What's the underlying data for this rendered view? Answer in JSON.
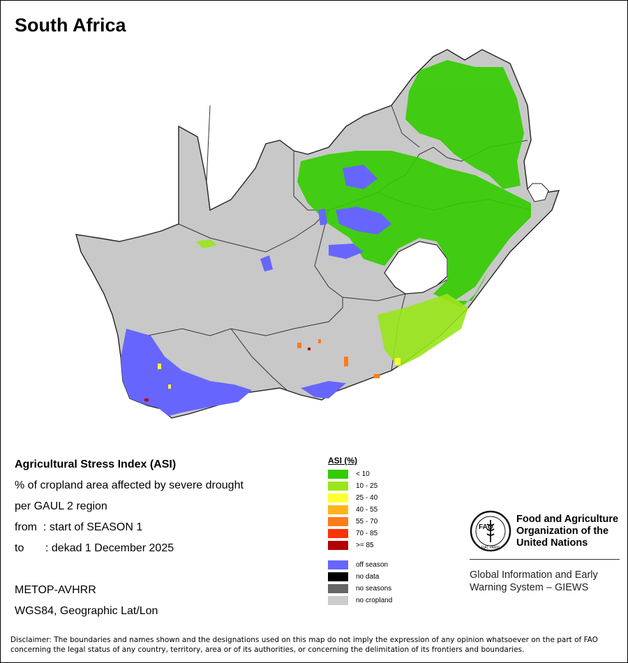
{
  "title": "South Africa",
  "info": {
    "index_name": "Agricultural Stress Index (ASI)",
    "description_line1": "% of cropland area affected by severe drought",
    "description_line2": "per GAUL 2 region",
    "from_label": "from",
    "from_value": ": start of SEASON 1",
    "to_label": "to",
    "to_value": ": dekad 1 December 2025",
    "sensor": "METOP-AVHRR",
    "projection": "WGS84, Geographic Lat/Lon"
  },
  "legend": {
    "title": "ASI (%)",
    "classes": [
      {
        "label": "< 10",
        "color": "#33cc00"
      },
      {
        "label": "10 - 25",
        "color": "#99e619"
      },
      {
        "label": "25 - 40",
        "color": "#ffff33"
      },
      {
        "label": "40 - 55",
        "color": "#ffb31a"
      },
      {
        "label": "55 - 70",
        "color": "#ff7a1a"
      },
      {
        "label": "70 - 85",
        "color": "#ff3300"
      },
      {
        "label": ">= 85",
        "color": "#b30000"
      }
    ],
    "other": [
      {
        "label": "off season",
        "color": "#6666ff"
      },
      {
        "label": "no data",
        "color": "#000000"
      },
      {
        "label": "no seasons",
        "color": "#666666"
      },
      {
        "label": "no cropland",
        "color": "#cccccc"
      }
    ]
  },
  "map": {
    "land_color": "#c8c8c8",
    "lesotho_color": "#ffffff",
    "border_color": "#222222"
  },
  "branding": {
    "org_line1": "Food and Agriculture",
    "org_line2": "Organization of the",
    "org_line3": "United Nations",
    "logo_text": "FAO",
    "logo_motto": "FIAT PANIS",
    "system_line1": "Global Information and Early",
    "system_line2": "Warning System – GIEWS"
  },
  "disclaimer": "Disclaimer: The boundaries and names shown and the designations used on this map do not imply the expression of any opinion whatsoever on the part of FAO concerning the legal status of any country, territory, area or of its authorities, or concerning the delimitation of its frontiers and boundaries."
}
